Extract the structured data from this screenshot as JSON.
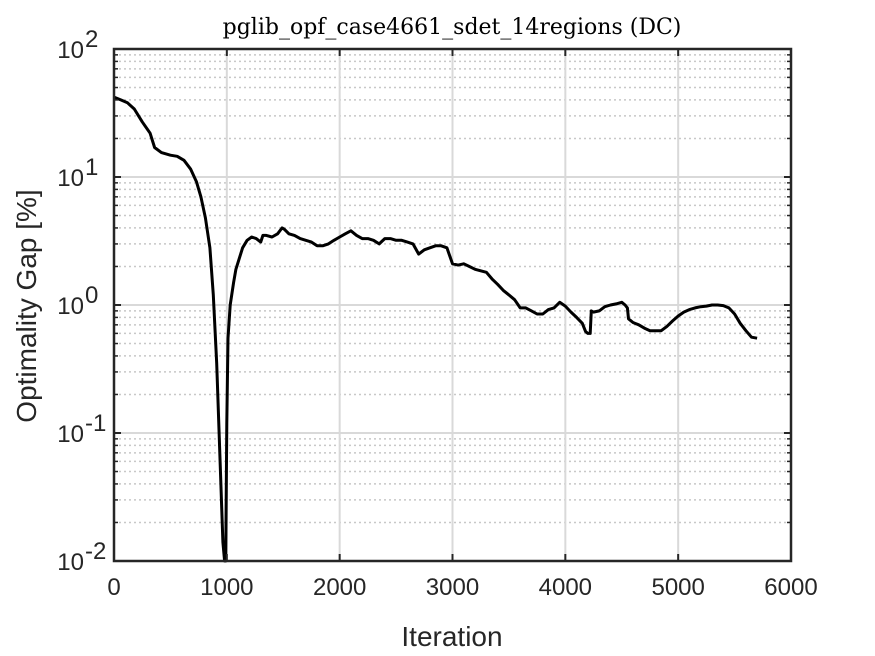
{
  "chart_data": {
    "type": "line",
    "title": "pglib_opf_case4661_sdet_14regions (DC)",
    "xlabel": "Iteration",
    "ylabel": "Optimality Gap [%]",
    "xlim": [
      0,
      6000
    ],
    "ylim": [
      0.01,
      100
    ],
    "yscale": "log",
    "grid": true,
    "minor_grid": true,
    "x_ticks": [
      0,
      1000,
      2000,
      3000,
      4000,
      5000,
      6000
    ],
    "x_tick_labels": [
      "0",
      "1000",
      "2000",
      "3000",
      "4000",
      "5000",
      "6000"
    ],
    "y_ticks": [
      0.01,
      0.1,
      1,
      10,
      100
    ],
    "y_tick_labels": [
      {
        "base": "10",
        "exp": "-2"
      },
      {
        "base": "10",
        "exp": "-1"
      },
      {
        "base": "10",
        "exp": "0"
      },
      {
        "base": "10",
        "exp": "1"
      },
      {
        "base": "10",
        "exp": "2"
      }
    ],
    "line_color": "#000000",
    "series": [
      {
        "x": [
          0,
          60,
          120,
          180,
          250,
          320,
          360,
          420,
          500,
          560,
          620,
          680,
          730,
          770,
          810,
          850,
          880,
          910,
          940,
          965,
          980,
          990,
          1000,
          1010,
          1030,
          1060,
          1080,
          1110,
          1140,
          1180,
          1220,
          1260,
          1300,
          1320,
          1350,
          1400,
          1450,
          1490,
          1510,
          1550,
          1600,
          1650,
          1700,
          1750,
          1800,
          1850,
          1900,
          1950,
          2000,
          2050,
          2100,
          2150,
          2200,
          2250,
          2300,
          2350,
          2400,
          2450,
          2500,
          2550,
          2600,
          2650,
          2700,
          2750,
          2800,
          2850,
          2900,
          2950,
          3000,
          3050,
          3100,
          3150,
          3200,
          3250,
          3300,
          3350,
          3400,
          3450,
          3500,
          3550,
          3600,
          3650,
          3700,
          3750,
          3800,
          3850,
          3900,
          3950,
          4000,
          4050,
          4100,
          4150,
          4180,
          4200,
          4220,
          4230,
          4250,
          4300,
          4350,
          4400,
          4450,
          4500,
          4530,
          4550,
          4560,
          4600,
          4650,
          4700,
          4750,
          4800,
          4850,
          4900,
          4950,
          5000,
          5050,
          5100,
          5150,
          5200,
          5250,
          5300,
          5350,
          5400,
          5450,
          5500,
          5550,
          5600,
          5650,
          5700
        ],
        "y": [
          42,
          40,
          38,
          34,
          27,
          22,
          17,
          15.5,
          14.8,
          14.5,
          13.5,
          11.5,
          9.2,
          7.0,
          4.8,
          2.8,
          1.2,
          0.35,
          0.06,
          0.014,
          0.01,
          0.01,
          0.12,
          0.55,
          1.0,
          1.5,
          1.9,
          2.3,
          2.8,
          3.2,
          3.4,
          3.3,
          3.1,
          3.5,
          3.5,
          3.4,
          3.6,
          4.0,
          3.9,
          3.6,
          3.5,
          3.3,
          3.2,
          3.1,
          2.9,
          2.9,
          3.0,
          3.2,
          3.4,
          3.6,
          3.8,
          3.5,
          3.3,
          3.3,
          3.2,
          3.0,
          3.3,
          3.3,
          3.2,
          3.2,
          3.1,
          3.0,
          2.5,
          2.7,
          2.8,
          2.9,
          2.9,
          2.8,
          2.1,
          2.05,
          2.1,
          2.0,
          1.9,
          1.85,
          1.8,
          1.6,
          1.45,
          1.3,
          1.2,
          1.1,
          0.95,
          0.95,
          0.9,
          0.85,
          0.85,
          0.92,
          0.95,
          1.05,
          0.98,
          0.88,
          0.8,
          0.72,
          0.62,
          0.6,
          0.6,
          0.9,
          0.88,
          0.9,
          0.97,
          1.0,
          1.02,
          1.05,
          1.0,
          0.95,
          0.78,
          0.73,
          0.7,
          0.66,
          0.63,
          0.63,
          0.63,
          0.68,
          0.75,
          0.82,
          0.88,
          0.92,
          0.95,
          0.97,
          0.98,
          1.0,
          1.0,
          0.99,
          0.95,
          0.85,
          0.72,
          0.63,
          0.56,
          0.55
        ]
      }
    ]
  }
}
